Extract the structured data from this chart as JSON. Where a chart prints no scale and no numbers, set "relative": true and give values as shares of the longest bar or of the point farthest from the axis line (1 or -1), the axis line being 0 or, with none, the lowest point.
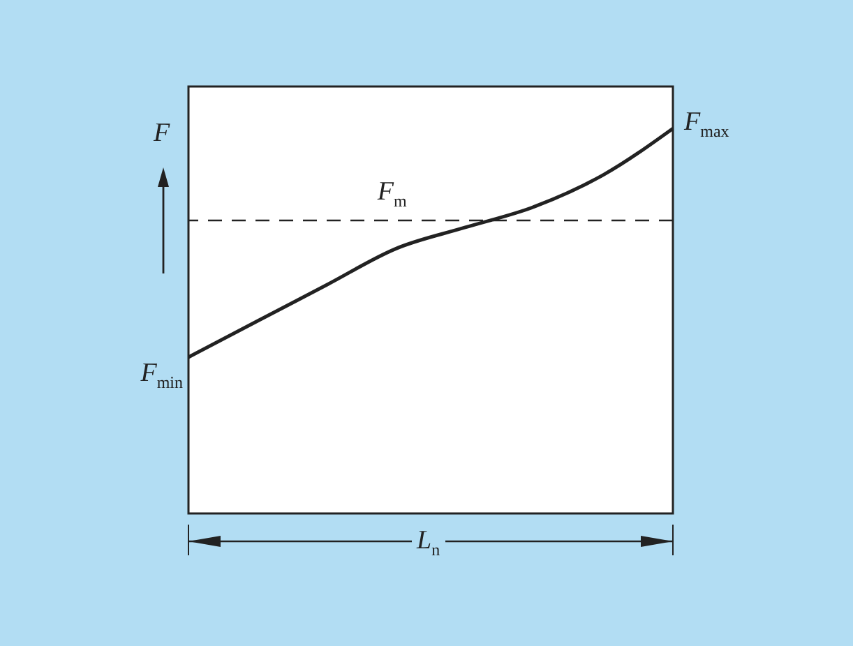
{
  "chart_data": {
    "type": "line",
    "relative": true,
    "ylabel": "F",
    "xlabel": "L$_{n}$",
    "categories": [
      null,
      null,
      null,
      null,
      null,
      null,
      null,
      null
    ],
    "values": [
      0.406,
      0.5,
      0.594,
      0.688,
      0.743,
      0.797,
      0.88,
      1.0
    ],
    "color": "#222222",
    "line_style": "solid",
    "ref_lines": [
      {
        "axis": "y",
        "value": 0.761,
        "label": "F$_{m}$",
        "line_style": "dashed",
        "color": "#222222"
      }
    ],
    "annotations": [
      "F$_{min}$",
      "F$_{max}$"
    ]
  }
}
